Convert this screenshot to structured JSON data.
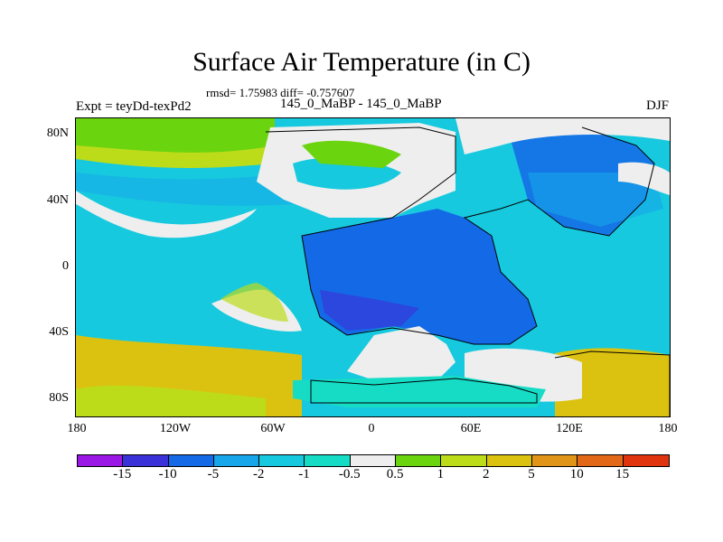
{
  "title": "Surface Air Temperature (in C)",
  "stats": "rmsd= 1.75983  diff= -0.757607",
  "left_label": "Expt = teyDd-texPd2",
  "center_label": "145_0_MaBP - 145_0_MaBP",
  "right_label": "DJF",
  "lat_labels": [
    "80N",
    "40N",
    "0",
    "40S",
    "80S"
  ],
  "lon_labels": [
    "180",
    "120W",
    "60W",
    "0",
    "60E",
    "120E",
    "180"
  ],
  "colorbar": {
    "labels": [
      "-15",
      "-10",
      "-5",
      "-2",
      "-1",
      "-0.5",
      "0.5",
      "1",
      "2",
      "5",
      "10",
      "15"
    ],
    "colors": [
      "#9b17e6",
      "#3a31d8",
      "#1469e6",
      "#16a6e9",
      "#17c9de",
      "#16dcc6",
      "#eeeeee",
      "#6ad40e",
      "#bcdc1a",
      "#dcc210",
      "#e09418",
      "#e26716",
      "#e0340f"
    ]
  }
}
